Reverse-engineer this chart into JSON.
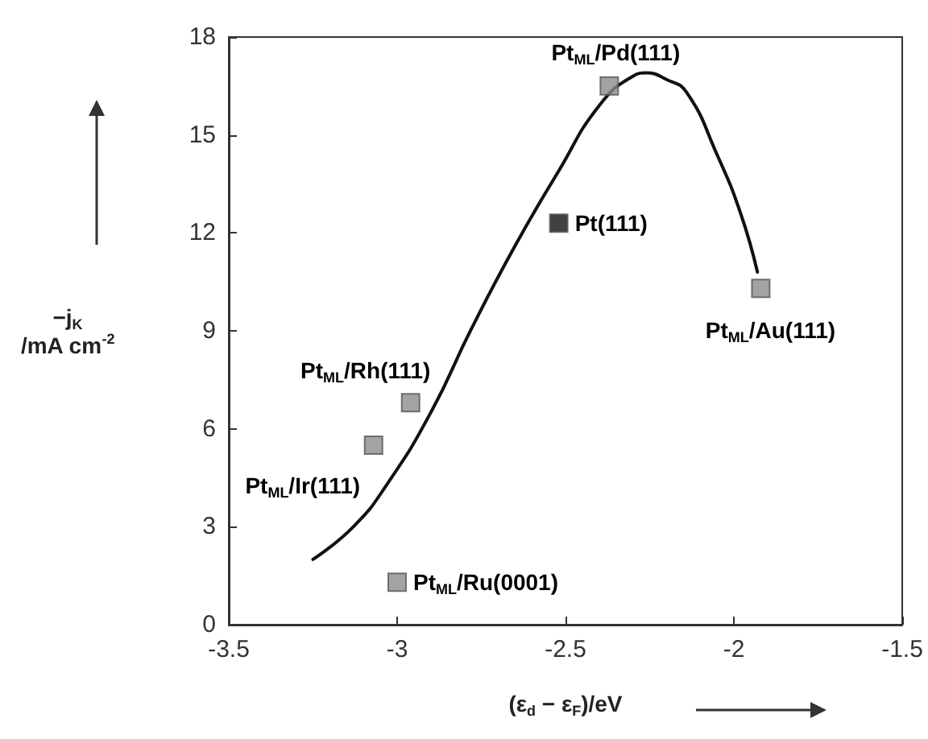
{
  "chart_data": {
    "type": "scatter",
    "xlabel": "(ε$_{d}$ − ε$_{F}$)/eV",
    "ylabel": "−j$_{K}$\n/mA cm$^{-2}$",
    "x": [
      -3.0,
      -3.07,
      -2.96,
      -2.52,
      -2.37,
      -1.92
    ],
    "values": [
      1.3,
      5.5,
      6.8,
      12.3,
      16.5,
      10.3
    ],
    "colors": [
      "#8c8c8c",
      "#8c8c8c",
      "#8c8c8c",
      "#111111",
      "#8c8c8c",
      "#8c8c8c"
    ],
    "marker": "square",
    "series": [
      {
        "type": "line",
        "color": "#111111",
        "marker": "none",
        "line_style": "solid",
        "x": [
          -3.25,
          -3.13,
          -3.03,
          -2.9,
          -2.78,
          -2.65,
          -2.52,
          -2.4,
          -2.3,
          -2.26,
          -2.2,
          -2.14,
          -2.05,
          -1.98,
          -1.93
        ],
        "values": [
          2.0,
          3.0,
          4.3,
          6.5,
          9.05,
          11.6,
          13.9,
          15.9,
          16.8,
          16.9,
          16.7,
          16.3,
          14.4,
          12.6,
          10.8
        ]
      }
    ],
    "xlim": [
      -3.5,
      -1.5
    ],
    "xticks": [
      -3.5,
      -3,
      -2.5,
      -2,
      -1.5
    ],
    "ylim": [
      0,
      18
    ],
    "yticks": [
      0,
      3,
      6,
      9,
      12,
      15,
      18
    ],
    "grid": false,
    "annotations": [
      {
        "text": "Pt$_{ML}$/Ru(0001)",
        "x": -3.0,
        "y": 1.3
      },
      {
        "text": "Pt$_{ML}$/Ir(111)",
        "x": -3.07,
        "y": 5.5
      },
      {
        "text": "Pt$_{ML}$/Rh(111)",
        "x": -2.96,
        "y": 6.8
      },
      {
        "text": "Pt(111)",
        "x": -2.52,
        "y": 12.3
      },
      {
        "text": "Pt$_{ML}$/Pd(111)",
        "x": -2.37,
        "y": 16.5
      },
      {
        "text": "Pt$_{ML}$/Au(111)",
        "x": -1.92,
        "y": 10.3
      }
    ]
  }
}
